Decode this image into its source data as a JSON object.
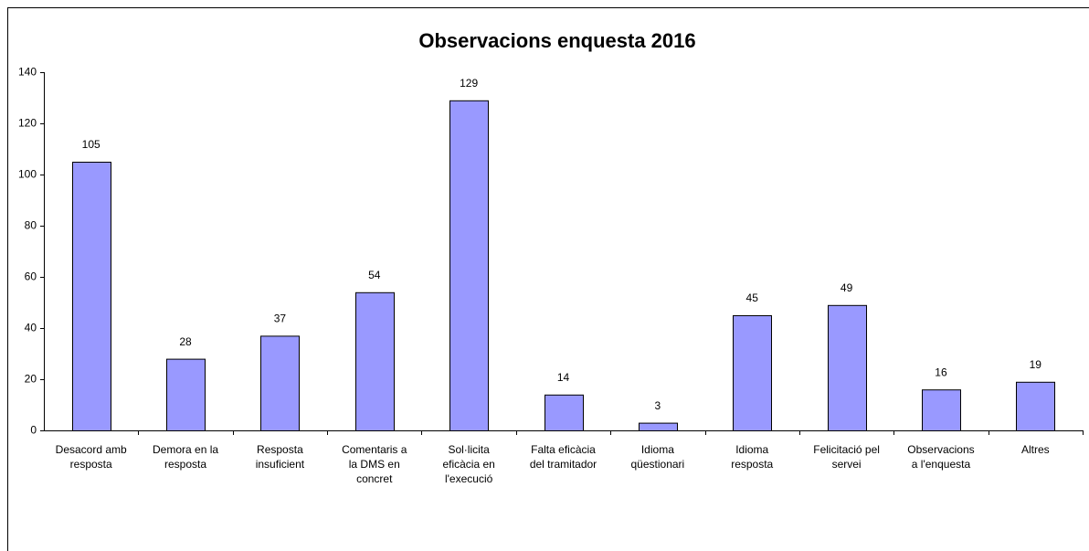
{
  "chart_data": {
    "type": "bar",
    "title": "Observacions enquesta 2016",
    "categories": [
      "Desacord amb resposta",
      "Demora en la resposta",
      "Resposta insuficient",
      "Comentaris a la DMS en concret",
      "Sol·licita eficàcia en l'execució",
      "Falta eficàcia del tramitador",
      "Idioma qüestionari",
      "Idioma resposta",
      "Felicitació pel servei",
      "Observacions a l'enquesta",
      "Altres"
    ],
    "values": [
      105,
      28,
      37,
      54,
      129,
      14,
      3,
      45,
      49,
      16,
      19
    ],
    "color": "#9999ff",
    "ylim": [
      0,
      140
    ],
    "yticks": [
      0,
      20,
      40,
      60,
      80,
      100,
      120,
      140
    ],
    "grid": false
  }
}
